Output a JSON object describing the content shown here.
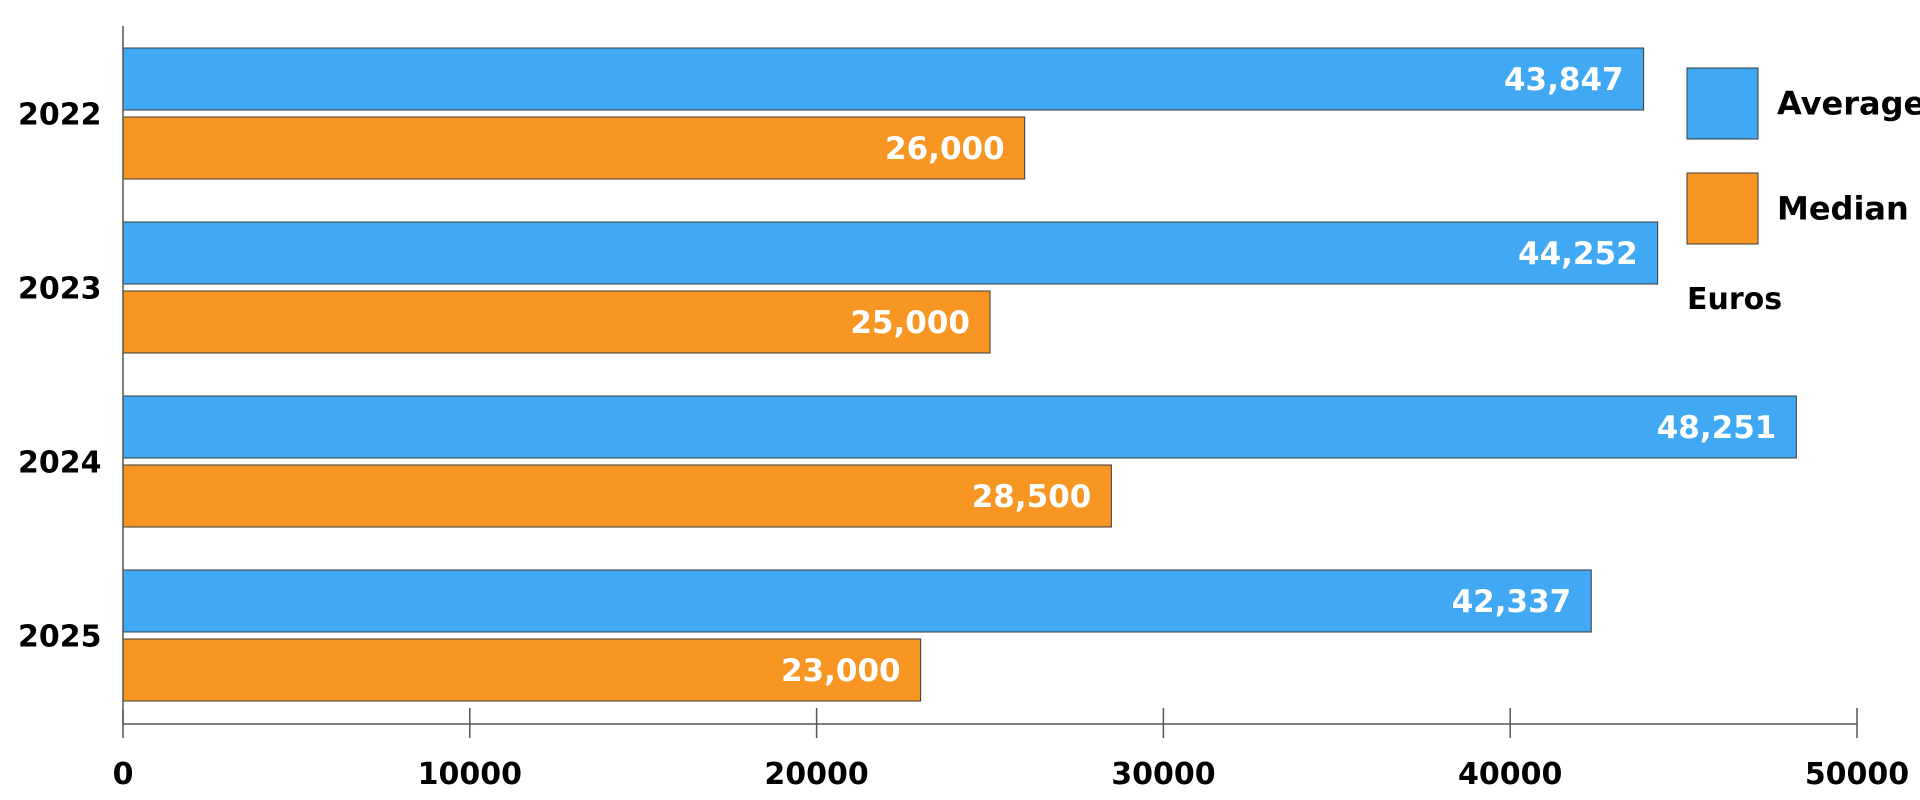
{
  "chart_data": {
    "type": "bar",
    "orientation": "horizontal",
    "categories": [
      "2022",
      "2023",
      "2024",
      "2025"
    ],
    "series": [
      {
        "name": "Average",
        "color": "#41a8f4",
        "values": [
          43847,
          44252,
          48251,
          42337
        ],
        "value_labels": [
          "43,847",
          "44,252",
          "48,251",
          "42,337"
        ]
      },
      {
        "name": "Median",
        "color": "#f79623",
        "values": [
          26000,
          25000,
          28500,
          23000
        ],
        "value_labels": [
          "26,000",
          "25,000",
          "28,500",
          "23,000"
        ]
      }
    ],
    "xlim": [
      0,
      50000
    ],
    "xticks": [
      0,
      10000,
      20000,
      30000,
      40000,
      50000
    ],
    "xtick_labels": [
      "0",
      "10000",
      "20000",
      "30000",
      "40000",
      "50000"
    ],
    "unit_label": "Euros",
    "legend_position": "top-right",
    "grid": false
  }
}
